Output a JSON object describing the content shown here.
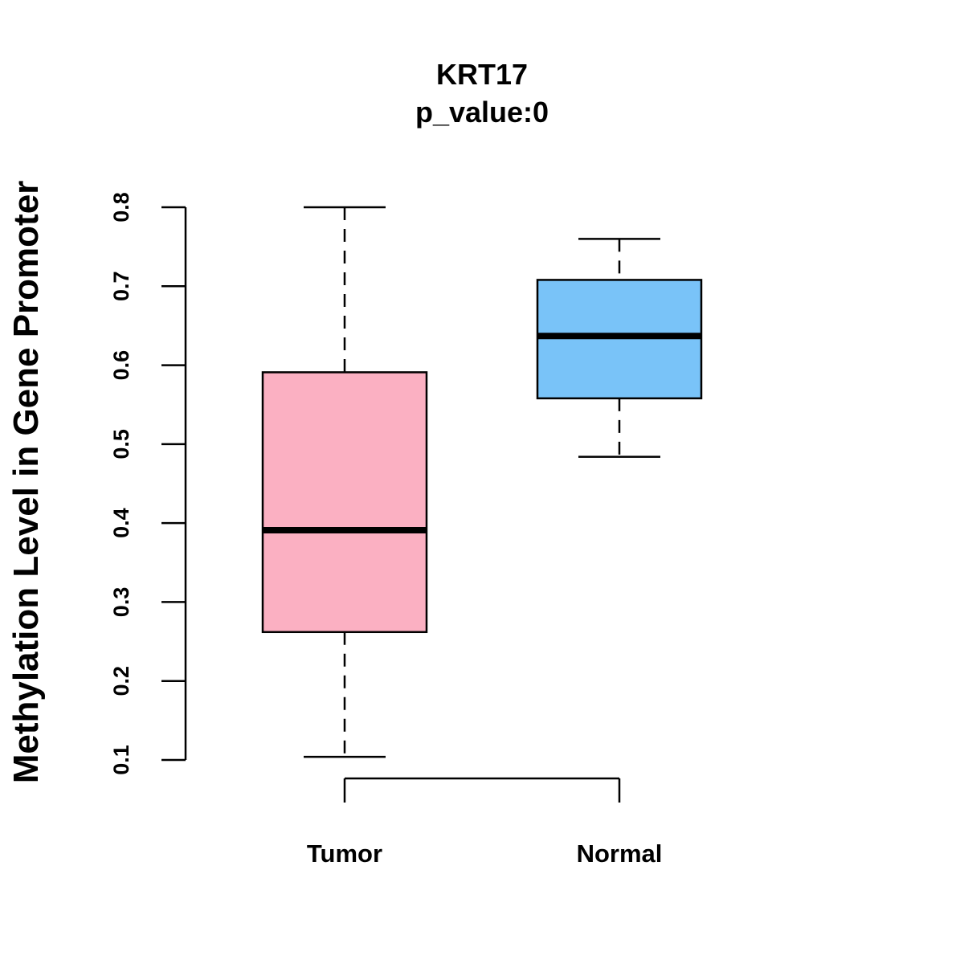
{
  "chart_data": {
    "type": "boxplot",
    "title": "KRT17",
    "subtitle": "p_value:0",
    "xlabel": "",
    "ylabel": "Methylation Level in Gene Promoter",
    "ylim": [
      0.1,
      0.8
    ],
    "yticks": [
      0.1,
      0.2,
      0.3,
      0.4,
      0.5,
      0.6,
      0.7,
      0.8
    ],
    "ytick_labels": [
      "0.1",
      "0.2",
      "0.3",
      "0.4",
      "0.5",
      "0.6",
      "0.7",
      "0.8"
    ],
    "categories": [
      "Tumor",
      "Normal"
    ],
    "series": [
      {
        "name": "Tumor",
        "color": "#FBB0C2",
        "min": 0.104,
        "q1": 0.262,
        "median": 0.391,
        "q3": 0.591,
        "max": 0.8
      },
      {
        "name": "Normal",
        "color": "#79C3F8",
        "min": 0.484,
        "q1": 0.558,
        "median": 0.637,
        "q3": 0.708,
        "max": 0.76
      }
    ],
    "grid": false
  }
}
